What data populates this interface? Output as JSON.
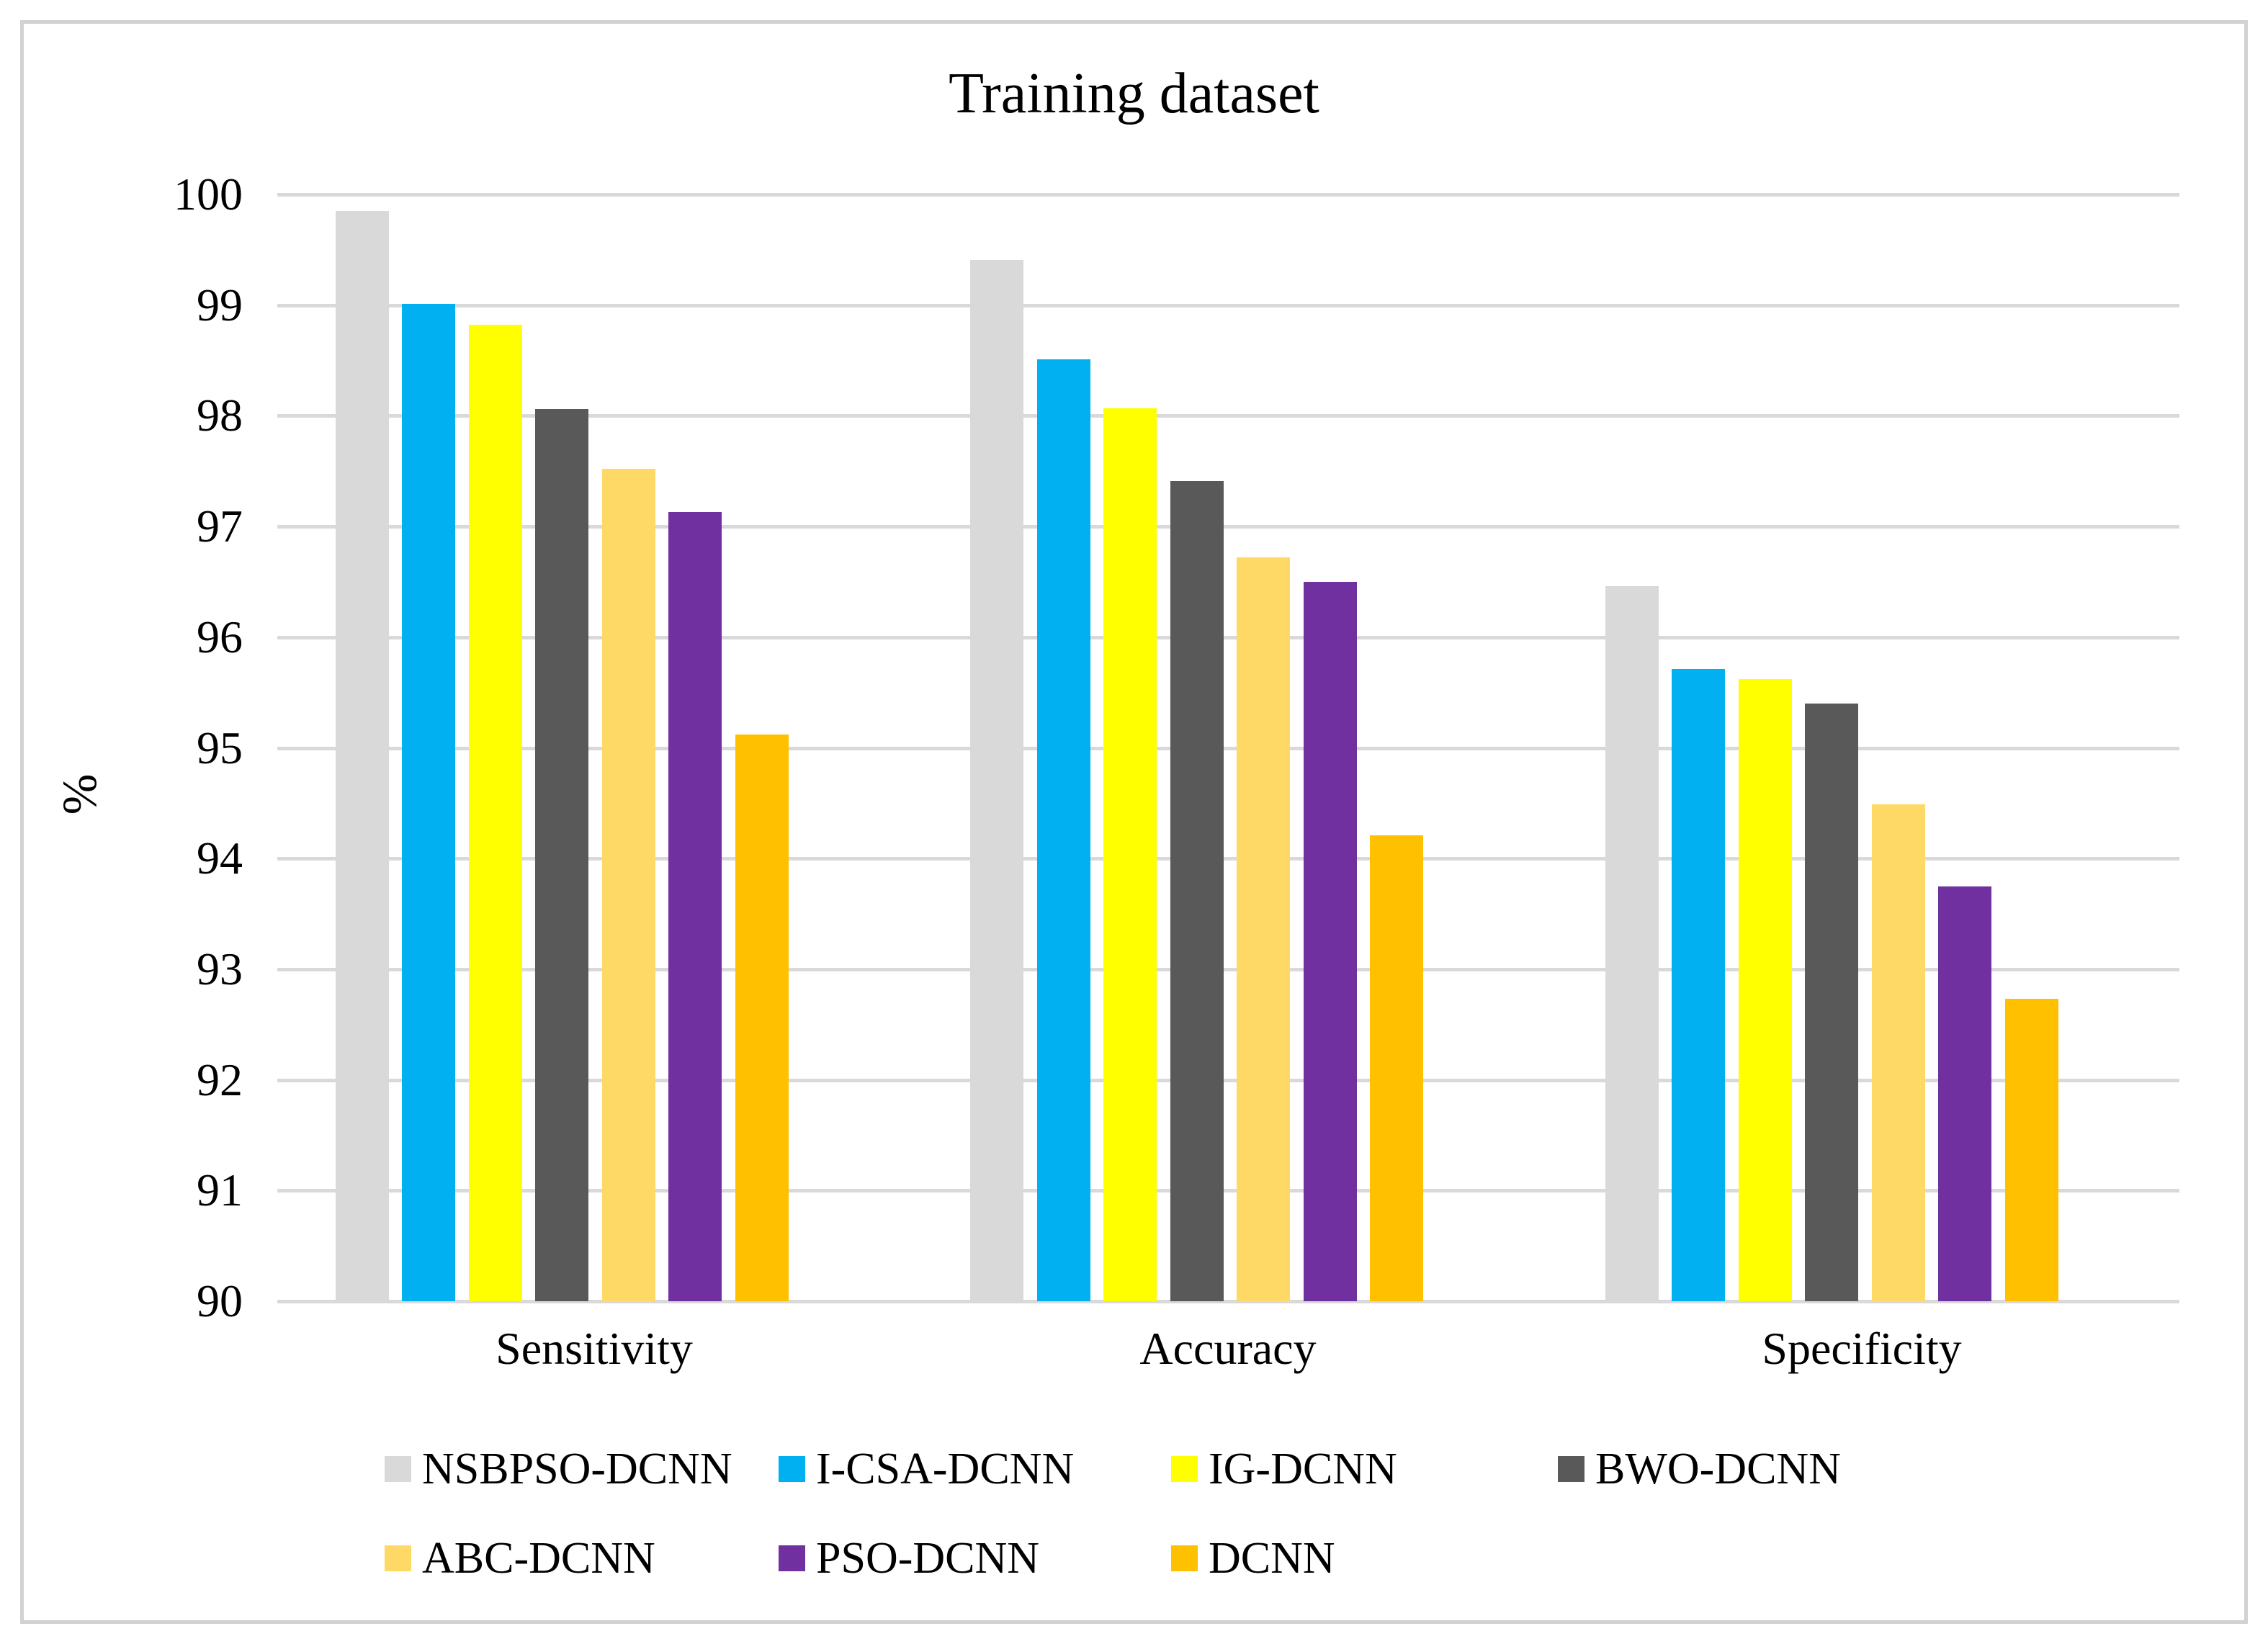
{
  "title": "Training dataset",
  "y_axis": {
    "label": "%",
    "min": 90,
    "max": 100,
    "tick_step": 1,
    "tick_labels": [
      "100",
      "99",
      "98",
      "97",
      "96",
      "95",
      "94",
      "93",
      "92",
      "91",
      "90"
    ]
  },
  "x_axis": {
    "categories": [
      "Sensitivity",
      "Accuracy",
      "Specificity"
    ]
  },
  "colors": {
    "gridline": "#d9d9d9",
    "border": "#d2d2d2",
    "background": "#ffffff"
  },
  "chart_data": {
    "type": "bar",
    "title": "Training dataset",
    "categories": [
      "Sensitivity",
      "Accuracy",
      "Specificity"
    ],
    "series": [
      {
        "name": "NSBPSO-DCNN",
        "color": "#d9d9d9",
        "values": [
          99.85,
          99.41,
          96.46
        ]
      },
      {
        "name": "I-CSA-DCNN",
        "color": "#00b0f0",
        "values": [
          99.01,
          98.51,
          95.71
        ]
      },
      {
        "name": "IG-DCNN",
        "color": "#ffff00",
        "values": [
          98.82,
          98.07,
          95.62
        ]
      },
      {
        "name": "BWO-DCNN",
        "color": "#595959",
        "values": [
          98.06,
          97.41,
          95.4
        ]
      },
      {
        "name": "ABC-DCNN",
        "color": "#ffd966",
        "values": [
          97.52,
          96.72,
          94.49
        ]
      },
      {
        "name": "PSO-DCNN",
        "color": "#7030a0",
        "values": [
          97.13,
          96.5,
          93.75
        ]
      },
      {
        "name": "DCNN",
        "color": "#ffc000",
        "values": [
          95.12,
          94.21,
          92.73
        ]
      }
    ],
    "xlabel": "",
    "ylabel": "%",
    "ylim": [
      90,
      100
    ],
    "grid": true,
    "legend_position": "bottom",
    "legend_rows": [
      [
        0,
        1,
        2,
        3
      ],
      [
        4,
        5,
        6
      ]
    ]
  }
}
